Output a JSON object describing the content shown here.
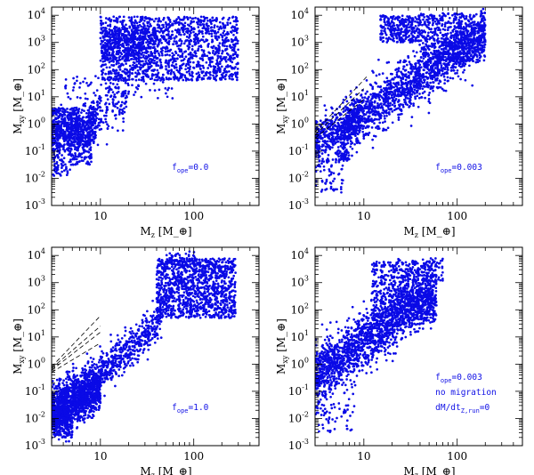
{
  "colors": {
    "points": "#0a0ae6",
    "axes": "#000000",
    "annotation": "#1010e6"
  },
  "chart_data": [
    {
      "type": "scatter",
      "panel": "top-left",
      "xlabel": "M_z [M_⊕]",
      "ylabel": "M_xy [M_⊕]",
      "xscale": "log",
      "yscale": "log",
      "xlim": [
        3,
        500
      ],
      "ylim": [
        0.001,
        20000
      ],
      "xticks": [
        {
          "value": 10,
          "label": "10"
        },
        {
          "value": 100,
          "label": "100"
        }
      ],
      "yticks": [
        {
          "value": 0.001,
          "label": "10",
          "exp": "-3"
        },
        {
          "value": 0.01,
          "label": "10",
          "exp": "-2"
        },
        {
          "value": 0.1,
          "label": "10",
          "exp": "-1"
        },
        {
          "value": 1,
          "label": "10",
          "exp": "0"
        },
        {
          "value": 10,
          "label": "10",
          "exp": "1"
        },
        {
          "value": 100,
          "label": "10",
          "exp": "2"
        },
        {
          "value": 1000,
          "label": "10",
          "exp": "3"
        },
        {
          "value": 10000,
          "label": "10",
          "exp": "4"
        }
      ],
      "annotation": [
        {
          "pre": "f",
          "sub": "ope",
          "post": "=0.0"
        }
      ],
      "guide_lines": [],
      "clusters": [
        {
          "n": 650,
          "x": [
            3,
            9
          ],
          "y0": 0.25,
          "slope": 1.3,
          "spread": 0.45
        },
        {
          "n": 120,
          "x": [
            3,
            6
          ],
          "y": [
            0.8,
            4
          ]
        },
        {
          "n": 90,
          "x": [
            4.5,
            8
          ],
          "y": [
            0.03,
            0.25
          ]
        },
        {
          "n": 35,
          "x": [
            3,
            4.5
          ],
          "y": [
            0.012,
            0.05
          ]
        },
        {
          "n": 140,
          "x": [
            9,
            20
          ],
          "y0": 3,
          "slope": 1.6,
          "spread": 0.5
        },
        {
          "n": 1500,
          "x": [
            10,
            300
          ],
          "y": [
            40,
            9000
          ]
        },
        {
          "n": 350,
          "x": [
            10,
            40
          ],
          "y": [
            200,
            3500
          ]
        },
        {
          "n": 50,
          "x": [
            12,
            60
          ],
          "y": [
            8,
            100
          ]
        },
        {
          "n": 30,
          "x": [
            4,
            10
          ],
          "y": [
            8,
            60
          ]
        }
      ]
    },
    {
      "type": "scatter",
      "panel": "top-right",
      "xlabel": "M_z [M_⊕]",
      "ylabel": "M_xy [M_⊕]",
      "xscale": "log",
      "yscale": "log",
      "xlim": [
        3,
        500
      ],
      "ylim": [
        0.001,
        20000
      ],
      "xticks": [
        {
          "value": 10,
          "label": "10"
        },
        {
          "value": 100,
          "label": "100"
        }
      ],
      "yticks": [
        {
          "value": 0.001,
          "label": "10",
          "exp": "-3"
        },
        {
          "value": 0.01,
          "label": "10",
          "exp": "-2"
        },
        {
          "value": 0.1,
          "label": "10",
          "exp": "-1"
        },
        {
          "value": 1,
          "label": "10",
          "exp": "0"
        },
        {
          "value": 10,
          "label": "10",
          "exp": "1"
        },
        {
          "value": 100,
          "label": "10",
          "exp": "2"
        },
        {
          "value": 1000,
          "label": "10",
          "exp": "3"
        },
        {
          "value": 10000,
          "label": "10",
          "exp": "4"
        }
      ],
      "annotation": [
        {
          "pre": "f",
          "sub": "ope",
          "post": "=0.003"
        }
      ],
      "guide_lines": [
        {
          "x": [
            3,
            10
          ],
          "y": [
            0.3,
            8
          ]
        },
        {
          "x": [
            3,
            10
          ],
          "y": [
            0.4,
            20
          ]
        },
        {
          "x": [
            3,
            11
          ],
          "y": [
            0.5,
            60
          ]
        }
      ],
      "clusters": [
        {
          "n": 500,
          "x": [
            3,
            9
          ],
          "y0": 0.25,
          "slope": 1.4,
          "spread": 0.4
        },
        {
          "n": 1600,
          "x": [
            6,
            200
          ],
          "y0": 0.7,
          "slope": 2.3,
          "spread": 0.45
        },
        {
          "n": 60,
          "x": [
            3,
            6
          ],
          "y": [
            0.003,
            0.05
          ]
        },
        {
          "n": 50,
          "x": [
            5,
            7
          ],
          "y": [
            0.04,
            0.1
          ]
        },
        {
          "n": 300,
          "x": [
            15,
            40
          ],
          "y": [
            1000,
            10000
          ]
        },
        {
          "n": 500,
          "x": [
            40,
            200
          ],
          "y": [
            200,
            12000
          ]
        }
      ]
    },
    {
      "type": "scatter",
      "panel": "bottom-left",
      "xlabel": "M_z [M_⊕]",
      "ylabel": "M_xy [M_⊕]",
      "xscale": "log",
      "yscale": "log",
      "xlim": [
        3,
        500
      ],
      "ylim": [
        0.001,
        20000
      ],
      "xticks": [
        {
          "value": 10,
          "label": "10"
        },
        {
          "value": 100,
          "label": "100"
        }
      ],
      "yticks": [
        {
          "value": 0.001,
          "label": "10",
          "exp": "-3"
        },
        {
          "value": 0.01,
          "label": "10",
          "exp": "-2"
        },
        {
          "value": 0.1,
          "label": "10",
          "exp": "-1"
        },
        {
          "value": 1,
          "label": "10",
          "exp": "0"
        },
        {
          "value": 10,
          "label": "10",
          "exp": "1"
        },
        {
          "value": 100,
          "label": "10",
          "exp": "2"
        },
        {
          "value": 1000,
          "label": "10",
          "exp": "3"
        },
        {
          "value": 10000,
          "label": "10",
          "exp": "4"
        }
      ],
      "annotation": [
        {
          "pre": "f",
          "sub": "ope",
          "post": "=1.0"
        }
      ],
      "guide_lines": [
        {
          "x": [
            3,
            10
          ],
          "y": [
            0.5,
            6
          ]
        },
        {
          "x": [
            3,
            10
          ],
          "y": [
            0.6,
            15
          ]
        },
        {
          "x": [
            3,
            10
          ],
          "y": [
            0.7,
            25
          ]
        },
        {
          "x": [
            3,
            10
          ],
          "y": [
            0.8,
            60
          ]
        }
      ],
      "clusters": [
        {
          "n": 1400,
          "x": [
            3,
            10
          ],
          "y0": 0.02,
          "slope": 1.7,
          "spread": 0.45
        },
        {
          "n": 200,
          "x": [
            3,
            5
          ],
          "y": [
            0.002,
            0.02
          ]
        },
        {
          "n": 450,
          "x": [
            10,
            45
          ],
          "y0": 0.5,
          "slope": 2.8,
          "spread": 0.35
        },
        {
          "n": 1200,
          "x": [
            40,
            280
          ],
          "y": [
            50,
            8000
          ]
        },
        {
          "n": 60,
          "x": [
            50,
            110
          ],
          "y": [
            3000,
            15000
          ]
        }
      ]
    },
    {
      "type": "scatter",
      "panel": "bottom-right",
      "xlabel": "M_z [M_⊕]",
      "ylabel": "M_xy [M_⊕]",
      "xscale": "log",
      "yscale": "log",
      "xlim": [
        3,
        500
      ],
      "ylim": [
        0.001,
        20000
      ],
      "xticks": [
        {
          "value": 10,
          "label": "10"
        },
        {
          "value": 100,
          "label": "100"
        }
      ],
      "yticks": [
        {
          "value": 0.001,
          "label": "10",
          "exp": "-3"
        },
        {
          "value": 0.01,
          "label": "10",
          "exp": "-2"
        },
        {
          "value": 0.1,
          "label": "10",
          "exp": "-1"
        },
        {
          "value": 1,
          "label": "10",
          "exp": "0"
        },
        {
          "value": 10,
          "label": "10",
          "exp": "1"
        },
        {
          "value": 100,
          "label": "10",
          "exp": "2"
        },
        {
          "value": 1000,
          "label": "10",
          "exp": "3"
        },
        {
          "value": 10000,
          "label": "10",
          "exp": "4"
        }
      ],
      "annotation": [
        {
          "pre": "f",
          "sub": "ope",
          "post": "=0.003"
        },
        {
          "pre": "no migration",
          "sub": "",
          "post": ""
        },
        {
          "pre": "dM/dt",
          "sub": "Z,run",
          "post": "=0"
        }
      ],
      "guide_lines": [],
      "clusters": [
        {
          "n": 1700,
          "x": [
            3,
            60
          ],
          "y0": 0.4,
          "slope": 2.4,
          "spread": 0.5
        },
        {
          "n": 90,
          "x": [
            3,
            8
          ],
          "y": [
            0.003,
            0.2
          ]
        },
        {
          "n": 500,
          "x": [
            12,
            60
          ],
          "y": [
            30,
            6000
          ]
        },
        {
          "n": 120,
          "x": [
            20,
            70
          ],
          "y": [
            1000,
            8000
          ]
        }
      ]
    }
  ]
}
